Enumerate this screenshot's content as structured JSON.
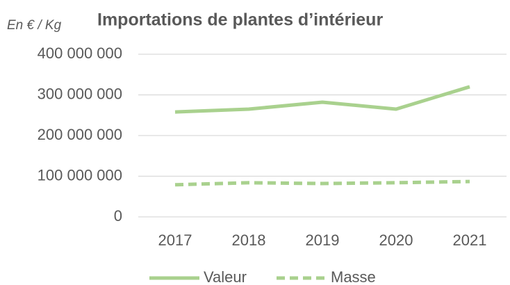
{
  "chart_data": {
    "type": "line",
    "title": "Importations de plantes d’intérieur",
    "y_label": "En €  / Kg",
    "categories": [
      "2017",
      "2018",
      "2019",
      "2020",
      "2021"
    ],
    "series": [
      {
        "name": "Valeur",
        "color": "#a9d18e",
        "dash": "solid",
        "values": [
          258000000,
          265000000,
          282000000,
          265000000,
          320000000
        ]
      },
      {
        "name": "Masse",
        "color": "#a9d18e",
        "dash": "dashed",
        "values": [
          79000000,
          84000000,
          82000000,
          84000000,
          87000000
        ]
      }
    ],
    "ylim": [
      0,
      400000000
    ],
    "yticks": [
      {
        "value": 0,
        "label": "0"
      },
      {
        "value": 100000000,
        "label": "100 000 000"
      },
      {
        "value": 200000000,
        "label": "200 000 000"
      },
      {
        "value": 300000000,
        "label": "300 000 000"
      },
      {
        "value": 400000000,
        "label": "400 000 000"
      }
    ],
    "grid": true,
    "legend": "bottom"
  }
}
